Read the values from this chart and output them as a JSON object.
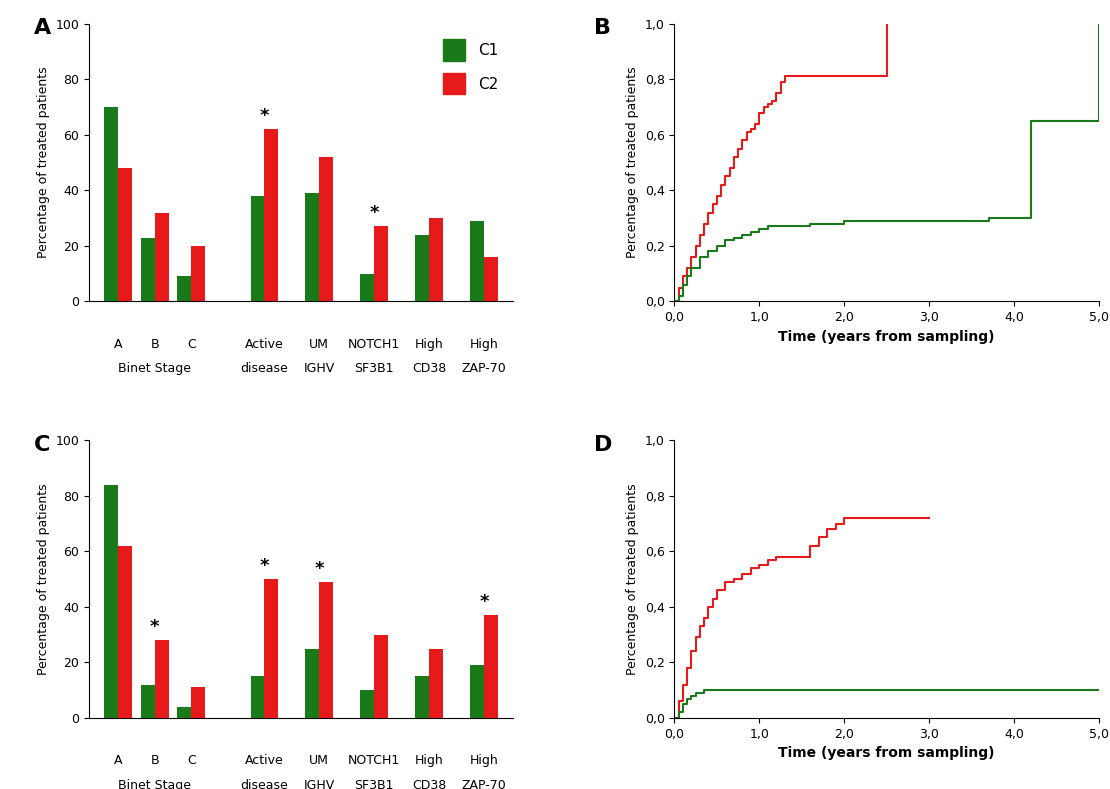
{
  "panel_A": {
    "C1": [
      70,
      23,
      9,
      38,
      39,
      10,
      24,
      29
    ],
    "C2": [
      48,
      32,
      20,
      62,
      52,
      27,
      30,
      16
    ],
    "star": [
      false,
      false,
      false,
      true,
      false,
      true,
      false,
      false
    ],
    "ylim": [
      0,
      100
    ],
    "ylabel": "Percentage of treated patients"
  },
  "panel_B": {
    "red_x": [
      0.0,
      0.05,
      0.1,
      0.15,
      0.2,
      0.25,
      0.3,
      0.35,
      0.4,
      0.45,
      0.5,
      0.55,
      0.6,
      0.65,
      0.7,
      0.75,
      0.8,
      0.85,
      0.9,
      0.95,
      1.0,
      1.05,
      1.1,
      1.15,
      1.2,
      1.25,
      1.3,
      1.4,
      1.5,
      1.6,
      1.65,
      1.7,
      1.75,
      1.8,
      1.9,
      2.0,
      2.5,
      2.5
    ],
    "red_y": [
      0.0,
      0.05,
      0.09,
      0.12,
      0.16,
      0.2,
      0.24,
      0.28,
      0.32,
      0.35,
      0.38,
      0.42,
      0.45,
      0.48,
      0.52,
      0.55,
      0.58,
      0.61,
      0.62,
      0.64,
      0.68,
      0.7,
      0.71,
      0.72,
      0.75,
      0.79,
      0.81,
      0.81,
      0.81,
      0.81,
      0.81,
      0.81,
      0.81,
      0.81,
      0.81,
      0.81,
      1.0,
      1.0
    ],
    "green_x": [
      0.0,
      0.05,
      0.1,
      0.15,
      0.2,
      0.3,
      0.4,
      0.5,
      0.6,
      0.7,
      0.8,
      0.9,
      1.0,
      1.1,
      1.2,
      1.4,
      1.6,
      1.8,
      2.0,
      2.2,
      2.5,
      3.0,
      3.7,
      4.0,
      4.2,
      4.2,
      5.0
    ],
    "green_y": [
      0.0,
      0.02,
      0.06,
      0.09,
      0.12,
      0.16,
      0.18,
      0.2,
      0.22,
      0.23,
      0.24,
      0.25,
      0.26,
      0.27,
      0.27,
      0.27,
      0.28,
      0.28,
      0.29,
      0.29,
      0.29,
      0.29,
      0.3,
      0.3,
      0.65,
      0.65,
      1.0
    ],
    "xlim": [
      0,
      5
    ],
    "ylim": [
      0,
      1.0
    ],
    "xlabel": "Time (years from sampling)",
    "ylabel": "Percentage of treated patients",
    "yticks": [
      0.0,
      0.2,
      0.4,
      0.6,
      0.8,
      1.0
    ],
    "ytick_labels": [
      "0,0",
      "0,2",
      "0,4",
      "0,6",
      "0,8",
      "1,0"
    ],
    "xtick_labels": [
      "0,0",
      "1,0",
      "2,0",
      "3,0",
      "4,0",
      "5,0"
    ]
  },
  "panel_C": {
    "C1": [
      84,
      12,
      4,
      15,
      25,
      10,
      15,
      19
    ],
    "C2": [
      62,
      28,
      11,
      50,
      49,
      30,
      25,
      37
    ],
    "star": [
      false,
      true,
      false,
      true,
      true,
      false,
      false,
      true
    ],
    "ylim": [
      0,
      100
    ],
    "ylabel": "Percentage of treated patients"
  },
  "panel_D": {
    "red_x": [
      0.0,
      0.05,
      0.1,
      0.15,
      0.2,
      0.25,
      0.3,
      0.35,
      0.4,
      0.45,
      0.5,
      0.6,
      0.7,
      0.8,
      0.9,
      1.0,
      1.1,
      1.2,
      1.5,
      1.6,
      1.7,
      1.8,
      1.9,
      2.0,
      2.1,
      2.2,
      3.0
    ],
    "red_y": [
      0.0,
      0.06,
      0.12,
      0.18,
      0.24,
      0.29,
      0.33,
      0.36,
      0.4,
      0.43,
      0.46,
      0.49,
      0.5,
      0.52,
      0.54,
      0.55,
      0.57,
      0.58,
      0.58,
      0.62,
      0.65,
      0.68,
      0.7,
      0.72,
      0.72,
      0.72,
      0.72
    ],
    "green_x": [
      0.0,
      0.05,
      0.1,
      0.15,
      0.2,
      0.25,
      0.3,
      0.35,
      0.4,
      0.5,
      1.0,
      2.0,
      3.0,
      5.0
    ],
    "green_y": [
      0.0,
      0.02,
      0.05,
      0.07,
      0.08,
      0.09,
      0.09,
      0.1,
      0.1,
      0.1,
      0.1,
      0.1,
      0.1,
      0.1
    ],
    "xlim": [
      0,
      5
    ],
    "ylim": [
      0,
      1.0
    ],
    "xlabel": "Time (years from sampling)",
    "ylabel": "Percentage of treated patients",
    "yticks": [
      0.0,
      0.2,
      0.4,
      0.6,
      0.8,
      1.0
    ],
    "ytick_labels": [
      "0,0",
      "0,2",
      "0,4",
      "0,6",
      "0,8",
      "1,0"
    ],
    "xtick_labels": [
      "0,0",
      "1,0",
      "2,0",
      "3,0",
      "4,0",
      "5,0"
    ]
  },
  "colors": {
    "C1": "#1a7a1a",
    "C2": "#e61a1a"
  },
  "legend": {
    "C1_label": "C1",
    "C2_label": "C2"
  }
}
